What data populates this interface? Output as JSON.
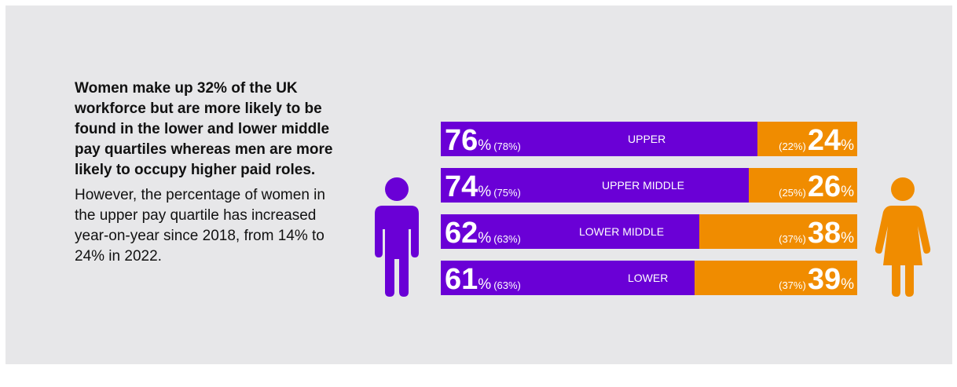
{
  "text": {
    "paragraph1": "Women make up 32% of the UK workforce but are more likely to be found in the lower and lower middle pay quartiles whereas men are more likely to occupy higher paid roles.",
    "paragraph2": "However, the percentage of women in the upper pay quartile has increased year-on-year since 2018, from 14% to 24% in 2022."
  },
  "colors": {
    "men": "#6a00d6",
    "women": "#f08c00",
    "panel": "#e7e7e9"
  },
  "icons": {
    "men": "man-icon",
    "women": "woman-icon"
  },
  "chart_data": {
    "type": "bar",
    "orientation": "horizontal-stacked",
    "categories": [
      "UPPER",
      "UPPER MIDDLE",
      "LOWER MIDDLE",
      "LOWER"
    ],
    "series": [
      {
        "values": [
          76,
          74,
          62,
          61
        ],
        "previous": [
          78,
          75,
          63,
          63
        ]
      },
      {
        "values": [
          24,
          26,
          38,
          39
        ],
        "previous": [
          22,
          25,
          37,
          37
        ]
      }
    ],
    "unit": "%",
    "xlim": [
      0,
      100
    ],
    "rows": [
      {
        "category": "UPPER",
        "men": "76",
        "men_prev": "(78%)",
        "women": "24",
        "women_prev": "(22%)"
      },
      {
        "category": "UPPER MIDDLE",
        "men": "74",
        "men_prev": "(75%)",
        "women": "26",
        "women_prev": "(25%)"
      },
      {
        "category": "LOWER MIDDLE",
        "men": "62",
        "men_prev": "(63%)",
        "women": "38",
        "women_prev": "(37%)"
      },
      {
        "category": "LOWER",
        "men": "61",
        "men_prev": "(63%)",
        "women": "39",
        "women_prev": "(37%)"
      }
    ]
  }
}
